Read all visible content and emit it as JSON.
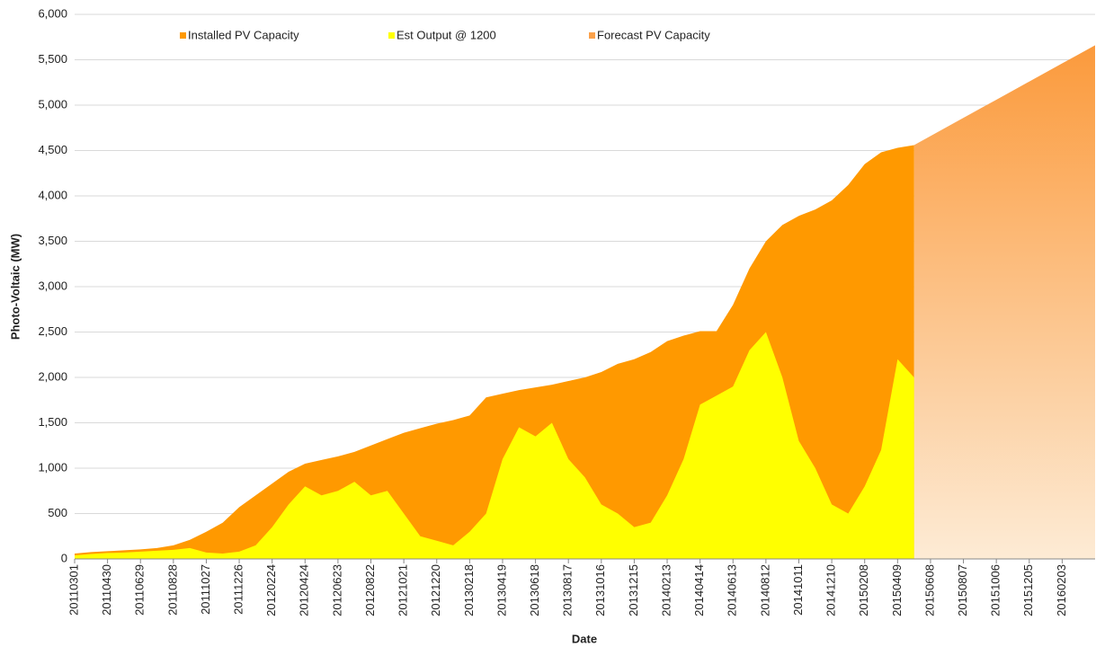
{
  "chart_data": {
    "type": "area",
    "y_label": "Photo-Voltaic (MW)",
    "x_label": "Date",
    "categories": [
      "20110301",
      null,
      "20110430",
      null,
      "20110629",
      null,
      "20110828",
      null,
      "20111027",
      null,
      "20111226",
      null,
      "20120224",
      null,
      "20120424",
      null,
      "20120623",
      null,
      "20120822",
      null,
      "20121021",
      null,
      "20121220",
      null,
      "20130218",
      null,
      "20130419",
      null,
      "20130618",
      null,
      "20130817",
      null,
      "20131016",
      null,
      "20131215",
      null,
      "20140213",
      null,
      "20140414",
      null,
      "20140613",
      null,
      "20140812",
      null,
      "20141011",
      null,
      "20141210",
      null,
      "20150208",
      null,
      "20150409",
      null,
      "20150608",
      null,
      "20150807",
      null,
      "20151006",
      null,
      "20151205",
      null,
      "20160203",
      null,
      null
    ],
    "series": [
      {
        "name": "Installed PV Capacity",
        "color": "#ff9900",
        "values": [
          60,
          75,
          85,
          95,
          105,
          120,
          150,
          210,
          300,
          400,
          570,
          700,
          830,
          960,
          1050,
          1090,
          1130,
          1180,
          1250,
          1320,
          1390,
          1440,
          1490,
          1530,
          1580,
          1780,
          1820,
          1860,
          1890,
          1920,
          1960,
          2000,
          2060,
          2150,
          2200,
          2280,
          2400,
          2460,
          2510,
          2510,
          2800,
          3200,
          3500,
          3680,
          3780,
          3850,
          3950,
          4120,
          4350,
          4480,
          4530,
          4560,
          null,
          null,
          null,
          null,
          null,
          null,
          null,
          null,
          null,
          null,
          null
        ]
      },
      {
        "name": "Est Output @ 1200",
        "color": "#ffff00",
        "values": [
          40,
          55,
          65,
          70,
          80,
          90,
          100,
          120,
          70,
          60,
          80,
          150,
          350,
          600,
          800,
          700,
          750,
          850,
          700,
          750,
          500,
          250,
          200,
          150,
          300,
          500,
          1100,
          1450,
          1350,
          1500,
          1100,
          900,
          600,
          500,
          350,
          400,
          700,
          1100,
          1700,
          1800,
          1900,
          2300,
          2500,
          2000,
          1300,
          1000,
          600,
          500,
          800,
          1200,
          2200,
          2000,
          null,
          null,
          null,
          null,
          null,
          null,
          null,
          null,
          null,
          null,
          null
        ]
      },
      {
        "name": "Forecast PV Capacity",
        "color": "#fba14a",
        "values": [
          null,
          null,
          null,
          null,
          null,
          null,
          null,
          null,
          null,
          null,
          null,
          null,
          null,
          null,
          null,
          null,
          null,
          null,
          null,
          null,
          null,
          null,
          null,
          null,
          null,
          null,
          null,
          null,
          null,
          null,
          null,
          null,
          null,
          null,
          null,
          null,
          null,
          null,
          null,
          null,
          null,
          null,
          null,
          null,
          null,
          null,
          null,
          null,
          null,
          null,
          null,
          4560,
          4660,
          4760,
          4860,
          4960,
          5060,
          5160,
          5260,
          5360,
          5460,
          5560,
          5660
        ]
      }
    ],
    "ylim": [
      0,
      6000
    ],
    "yticks": [
      0,
      500,
      {
        "value": 1000,
        "label": "1,000"
      },
      {
        "value": 1500,
        "label": "1,500"
      },
      {
        "value": 2000,
        "label": "2,000"
      },
      {
        "value": 2500,
        "label": "2,500"
      },
      {
        "value": 3000,
        "label": "3,000"
      },
      {
        "value": 3500,
        "label": "3,500"
      },
      {
        "value": 4000,
        "label": "4,000"
      },
      {
        "value": 4500,
        "label": "4,500"
      },
      {
        "value": 5000,
        "label": "5,000"
      },
      {
        "value": 5500,
        "label": "5,500"
      },
      {
        "value": 6000,
        "label": "6,000"
      }
    ],
    "grid": true,
    "legend": "top"
  }
}
